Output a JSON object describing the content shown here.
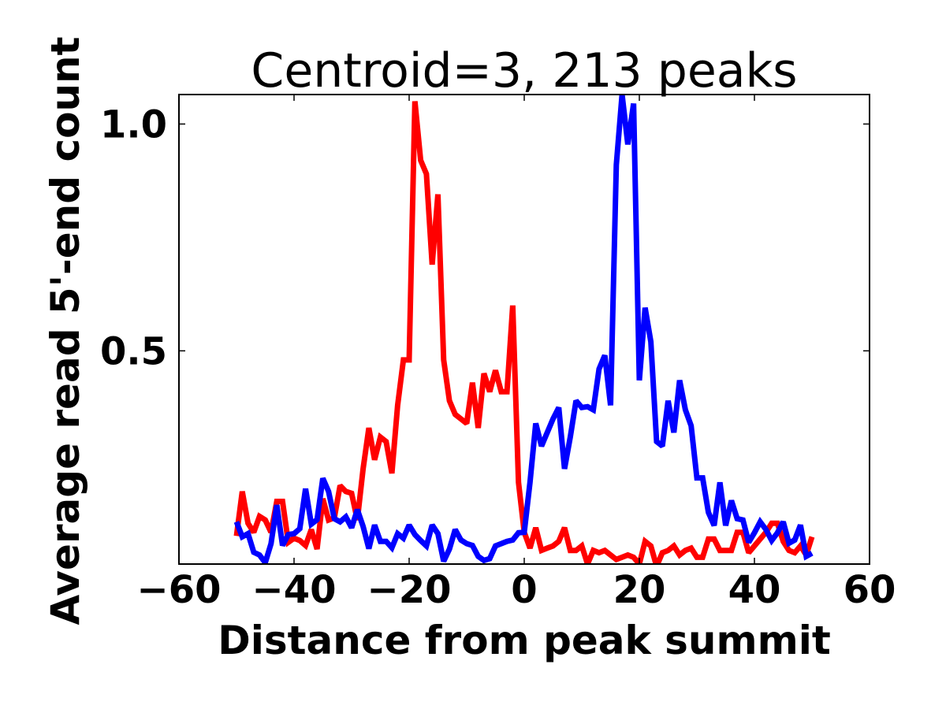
{
  "chart_data": {
    "type": "line",
    "title": "Centroid=3, 213 peaks",
    "xlabel": "Distance from peak summit",
    "ylabel": "Average read 5'-end count",
    "xlim": [
      -60,
      60
    ],
    "ylim": [
      0.03,
      1.065
    ],
    "xticks": [
      -60,
      -40,
      -20,
      0,
      20,
      40,
      60
    ],
    "xtick_labels": [
      "−60",
      "−40",
      "−20",
      "0",
      "20",
      "40",
      "60"
    ],
    "yticks": [
      0.5,
      1.0
    ],
    "ytick_labels": [
      "0.5",
      "1.0"
    ],
    "grid": false,
    "x_start": -50,
    "x_step": 1,
    "series": [
      {
        "name": "red",
        "color": "#ff0000",
        "values": [
          0.092,
          0.19,
          0.12,
          0.1,
          0.135,
          0.127,
          0.1,
          0.168,
          0.168,
          0.078,
          0.087,
          0.082,
          0.071,
          0.106,
          0.063,
          0.174,
          0.127,
          0.132,
          0.203,
          0.19,
          0.186,
          0.127,
          0.24,
          0.33,
          0.26,
          0.31,
          0.3,
          0.23,
          0.38,
          0.48,
          0.48,
          1.05,
          0.92,
          0.89,
          0.69,
          0.845,
          0.48,
          0.39,
          0.36,
          0.35,
          0.34,
          0.43,
          0.33,
          0.45,
          0.41,
          0.457,
          0.41,
          0.41,
          0.6,
          0.21,
          0.1,
          0.065,
          0.11,
          0.06,
          0.065,
          0.07,
          0.08,
          0.11,
          0.06,
          0.06,
          0.07,
          0.03,
          0.06,
          0.055,
          0.06,
          0.05,
          0.04,
          0.045,
          0.05,
          0.045,
          0.03,
          0.08,
          0.07,
          0.025,
          0.055,
          0.06,
          0.07,
          0.05,
          0.06,
          0.065,
          0.045,
          0.045,
          0.085,
          0.085,
          0.06,
          0.06,
          0.06,
          0.1,
          0.1,
          0.055,
          0.07,
          0.085,
          0.1,
          0.12,
          0.12,
          0.08,
          0.06,
          0.055,
          0.07,
          0.05,
          0.09
        ]
      },
      {
        "name": "blue",
        "color": "#0000ff",
        "values": [
          0.123,
          0.09,
          0.097,
          0.056,
          0.05,
          0.033,
          0.075,
          0.16,
          0.071,
          0.095,
          0.097,
          0.108,
          0.196,
          0.118,
          0.128,
          0.219,
          0.19,
          0.13,
          0.123,
          0.134,
          0.11,
          0.15,
          0.113,
          0.064,
          0.116,
          0.08,
          0.08,
          0.066,
          0.097,
          0.087,
          0.116,
          0.095,
          0.082,
          0.07,
          0.116,
          0.097,
          0.036,
          0.063,
          0.106,
          0.083,
          0.075,
          0.071,
          0.047,
          0.038,
          0.042,
          0.07,
          0.075,
          0.08,
          0.083,
          0.099,
          0.1,
          0.21,
          0.34,
          0.29,
          0.32,
          0.35,
          0.375,
          0.24,
          0.31,
          0.39,
          0.375,
          0.377,
          0.37,
          0.46,
          0.49,
          0.38,
          0.91,
          1.065,
          0.955,
          1.045,
          0.435,
          0.595,
          0.52,
          0.3,
          0.29,
          0.39,
          0.32,
          0.435,
          0.37,
          0.335,
          0.22,
          0.22,
          0.144,
          0.115,
          0.21,
          0.115,
          0.17,
          0.13,
          0.127,
          0.078,
          0.099,
          0.123,
          0.106,
          0.082,
          0.099,
          0.123,
          0.076,
          0.083,
          0.116,
          0.047,
          0.054
        ]
      }
    ]
  }
}
